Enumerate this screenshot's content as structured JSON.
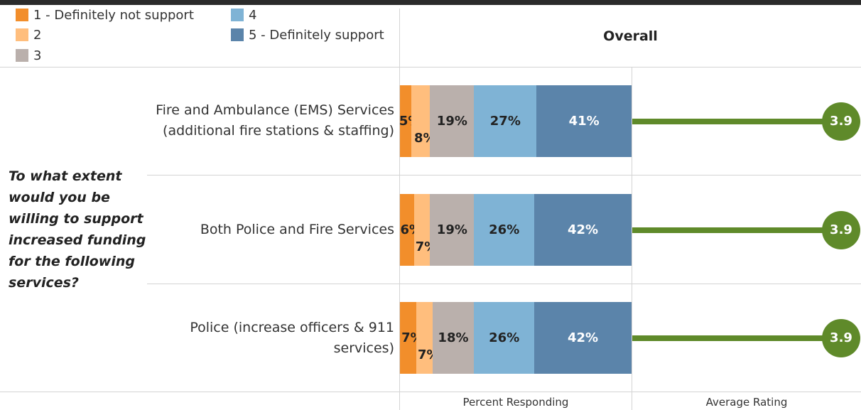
{
  "question": "To what extent would you be willing to support increased funding for the following services?",
  "panel_header": "Overall",
  "axis_titles": {
    "percent": "Percent Responding",
    "rating": "Average Rating"
  },
  "colors": {
    "s1": "#f28e2b",
    "s2": "#ffbe7d",
    "s3": "#bab0ac",
    "s4": "#7fb3d5",
    "s5": "#5b84aa",
    "rating": "#5f8a2a"
  },
  "chart_data": {
    "type": "bar",
    "stacked": true,
    "orientation": "horizontal",
    "categories": [
      "Fire and Ambulance (EMS) Services (additional fire stations & staffing)",
      "Both Police and Fire Services",
      "Police (increase officers & 911 services)"
    ],
    "series": [
      {
        "name": "1 - Definitely not support",
        "values": [
          5,
          6,
          7
        ],
        "labels": [
          "5%",
          "6%",
          "7%"
        ]
      },
      {
        "name": "2",
        "values": [
          8,
          7,
          7
        ],
        "labels": [
          "8%",
          "7%",
          "7%"
        ]
      },
      {
        "name": "3",
        "values": [
          19,
          19,
          18
        ],
        "labels": [
          "19%",
          "19%",
          "18%"
        ]
      },
      {
        "name": "4",
        "values": [
          27,
          26,
          26
        ],
        "labels": [
          "27%",
          "26%",
          "26%"
        ]
      },
      {
        "name": "5 - Definitely support",
        "values": [
          41,
          42,
          42
        ],
        "labels": [
          "41%",
          "42%",
          "42%"
        ]
      }
    ],
    "average_rating": {
      "values": [
        3.9,
        3.9,
        3.9
      ],
      "labels": [
        "3.9",
        "3.9",
        "3.9"
      ],
      "range": [
        0,
        3.9
      ]
    },
    "xlim": [
      0,
      100
    ],
    "legend": "top-left"
  }
}
